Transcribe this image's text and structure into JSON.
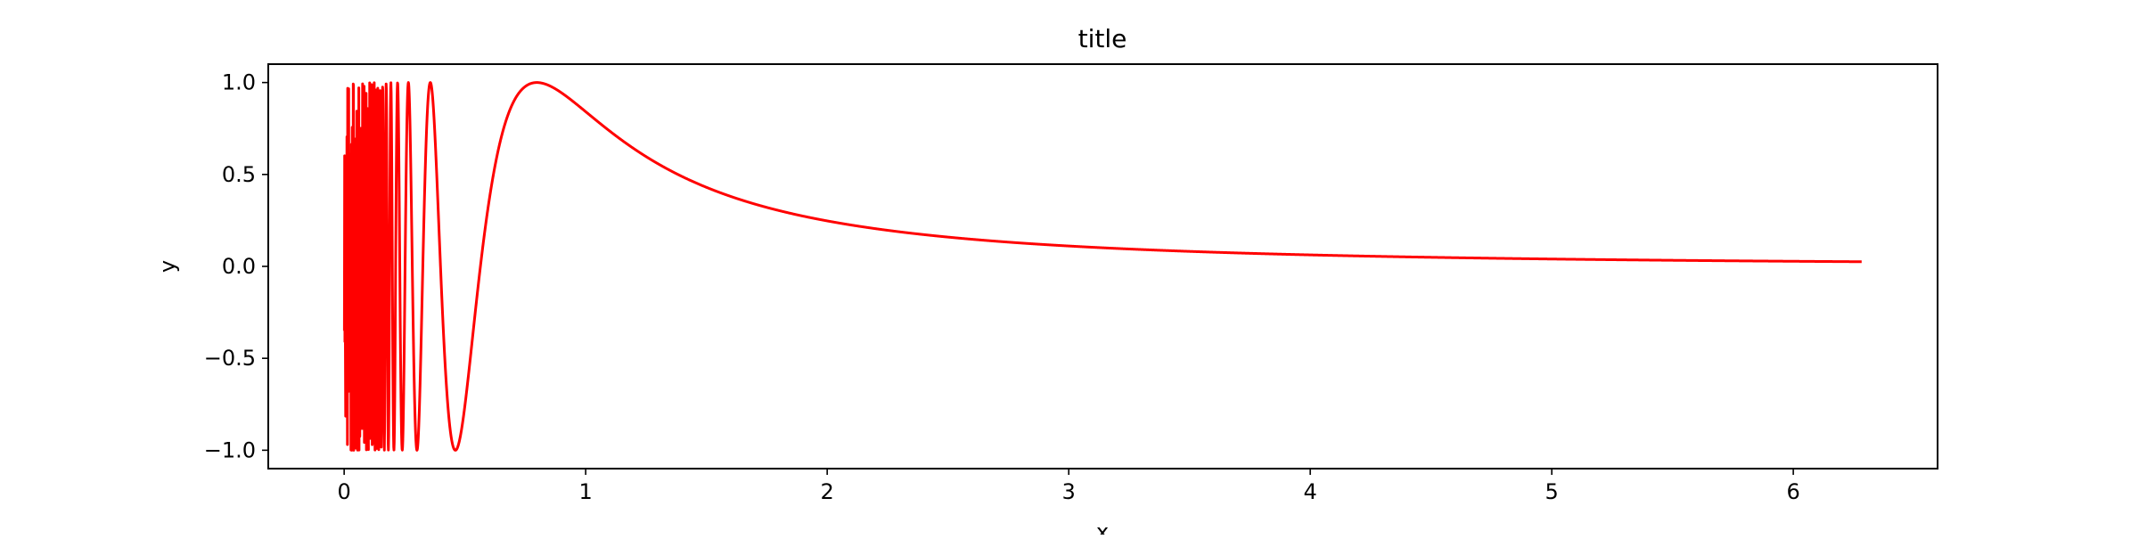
{
  "chart_data": {
    "type": "line",
    "title": "title",
    "xlabel": "x",
    "ylabel": "y",
    "xlim": [
      -0.3142,
      6.5974
    ],
    "ylim": [
      -1.1,
      1.1
    ],
    "xticks": [
      0,
      1,
      2,
      3,
      4,
      5,
      6
    ],
    "yticks": [
      -1.0,
      -0.5,
      0.0,
      0.5,
      1.0
    ],
    "xtick_labels": [
      "0",
      "1",
      "2",
      "3",
      "4",
      "5",
      "6"
    ],
    "ytick_labels": [
      "−1.0",
      "−0.5",
      "0.0",
      "0.5",
      "1.0"
    ],
    "grid": false,
    "legend": false,
    "series": [
      {
        "color": "#ff0000",
        "x_range": [
          0.001,
          6.283
        ],
        "function": "y = sin(1/x^2)",
        "sample_count": 6000
      }
    ]
  }
}
